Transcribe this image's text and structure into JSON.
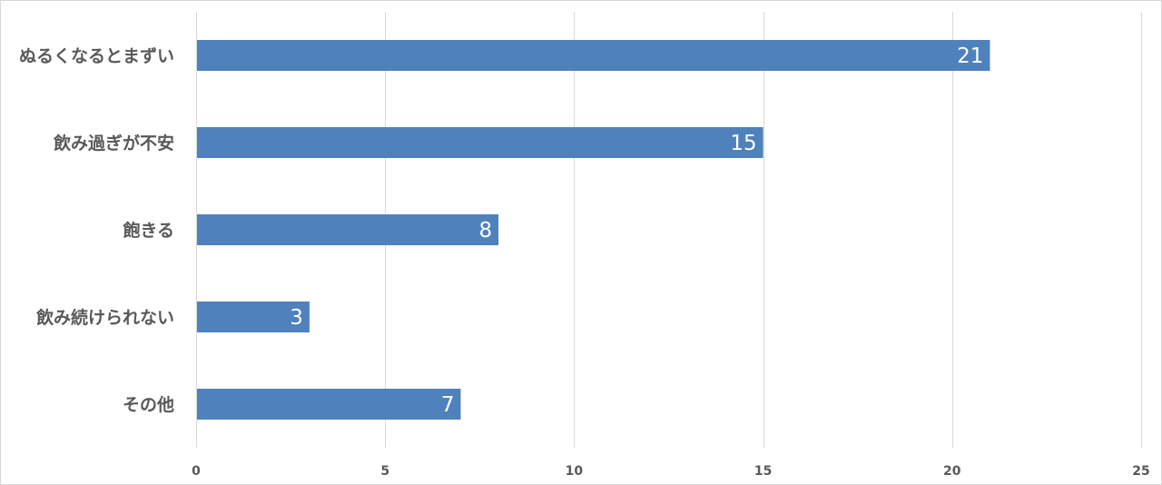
{
  "chart_data": {
    "type": "bar",
    "orientation": "horizontal",
    "title": "",
    "xlabel": "",
    "ylabel": "",
    "categories": [
      "ぬるくなるとまずい",
      "飲み過ぎが不安",
      "飽きる",
      "飲み続けられない",
      "その他"
    ],
    "values": [
      21,
      15,
      8,
      3,
      7
    ],
    "xlim": [
      0,
      25
    ],
    "ticks": [
      0,
      5,
      10,
      15,
      20,
      25
    ],
    "tick_labels": [
      "0",
      "5",
      "10",
      "15",
      "20",
      "25"
    ],
    "grid": true,
    "legend": "none",
    "data_labels": true,
    "bar_color": "#4f81bd",
    "gridline_color": "#d9d9d9",
    "label_color": "#595959",
    "data_label_color": "#ffffff"
  }
}
